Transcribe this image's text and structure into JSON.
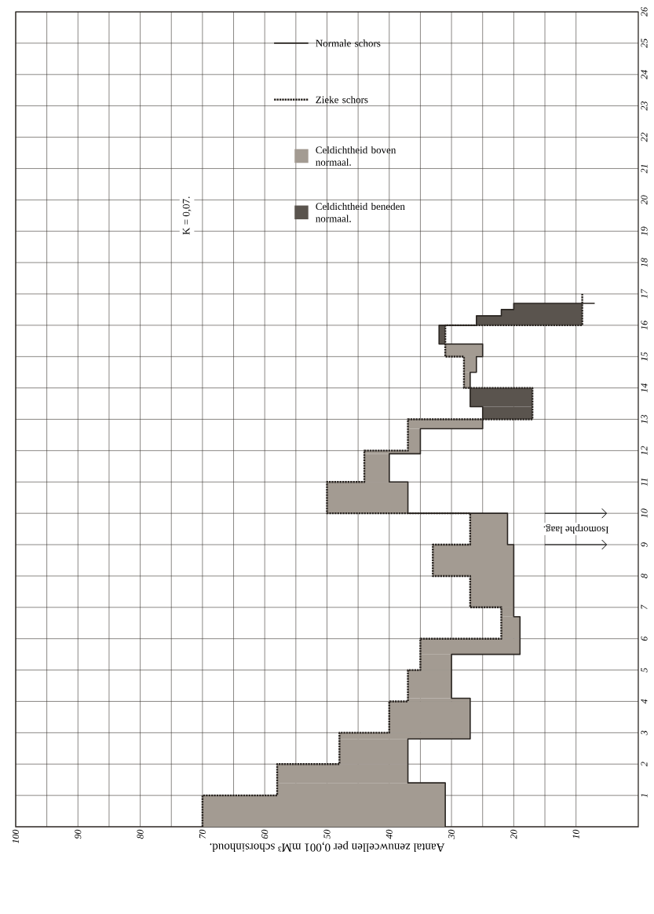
{
  "chart_data": {
    "type": "step",
    "orientation": "horizontal",
    "xlabel": "Aantal zenuwcellen per 0,001 mM³ schorsinhoud.",
    "xlim": [
      100,
      0
    ],
    "xticks": [
      100,
      90,
      80,
      70,
      60,
      50,
      40,
      30,
      20,
      10
    ],
    "ylim": [
      0,
      26
    ],
    "yticks": [
      1,
      2,
      3,
      4,
      5,
      6,
      7,
      8,
      9,
      10,
      11,
      12,
      13,
      14,
      15,
      16,
      17,
      18,
      19,
      20,
      21,
      22,
      23,
      24,
      25,
      26
    ],
    "grid": true,
    "legend": "top",
    "annotations": [
      "K = 0,07.",
      "Isomorphe laag."
    ],
    "series": [
      {
        "name": "Normale schors",
        "color": "#2b2622",
        "line_style": "solid",
        "x": [
          0,
          1.4,
          2.8,
          4.1,
          5.5,
          6.7,
          9,
          10,
          11,
          11.9,
          12.7,
          13.4,
          14.5,
          15,
          15.4,
          16,
          16.3,
          16.5,
          16.7
        ],
        "values": [
          31,
          37,
          27,
          30,
          19,
          20,
          21,
          37,
          40,
          35,
          25,
          27,
          26,
          25,
          32,
          26,
          22,
          20,
          7
        ]
      },
      {
        "name": "Zieke schors",
        "color": "#2b2622",
        "line_style": "dotted",
        "x": [
          0,
          1,
          2,
          3,
          4,
          5,
          6,
          7,
          8,
          9,
          10,
          11,
          12,
          13,
          14,
          15,
          16,
          17
        ],
        "values": [
          70,
          58,
          48,
          40,
          37,
          35,
          22,
          27,
          33,
          27,
          50,
          44,
          37,
          17,
          28,
          31,
          9,
          9
        ]
      },
      {
        "name": "Celdichtheid boven normaal.",
        "type": "area",
        "color": "#a39b92",
        "x": [
          0,
          1,
          1.4,
          2,
          2.8,
          3,
          4,
          4.1,
          5,
          5.5,
          6,
          6.7,
          7,
          8,
          9,
          10,
          11,
          11.9,
          12,
          12.7,
          13,
          13.5,
          14,
          14.5,
          15,
          15.4
        ],
        "values": [
          70,
          58,
          58,
          48,
          48,
          40,
          37,
          37,
          35,
          35,
          22,
          22,
          27,
          33,
          27,
          50,
          44,
          44,
          37,
          37,
          37,
          null,
          28,
          28,
          31,
          31
        ]
      },
      {
        "name": "Celdichtheid beneden normaal.",
        "type": "area",
        "color": "#5a544e",
        "x": [
          13,
          13.4,
          14,
          14.7,
          15.4,
          16,
          16.3,
          16.5,
          16.7
        ],
        "values": [
          25,
          27,
          27,
          null,
          32,
          26,
          22,
          20,
          20
        ]
      }
    ]
  }
}
